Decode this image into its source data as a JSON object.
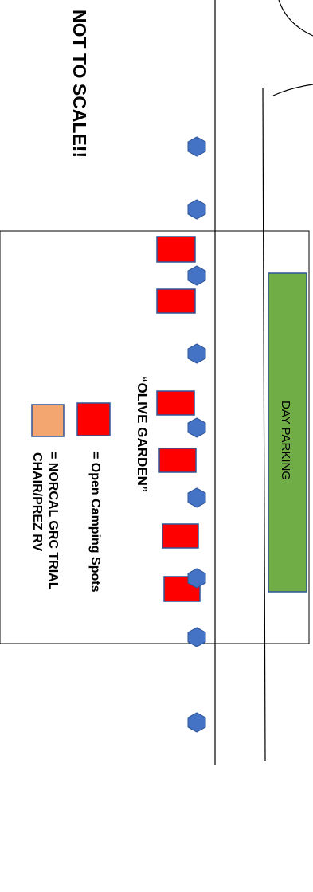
{
  "title": "NOT TO SCALE!!",
  "area_label": "“OLIVE GARDEN”",
  "parking_label": "DAY PARKING",
  "legend": {
    "camping": "= Open Camping Spots",
    "norcal_line1": "= NORCAL GRC TRIAL",
    "norcal_line2": "CHAIR/PREZ RV"
  },
  "colors": {
    "camping_spot": "#ff0000",
    "camping_spot_border": "#2e5597",
    "norcal_rv": "#f4a671",
    "parking": "#70ad47",
    "marker": "#4472c4",
    "line": "#000000"
  },
  "icons": {
    "marker": "hexagon-icon",
    "camping": "square-icon"
  }
}
